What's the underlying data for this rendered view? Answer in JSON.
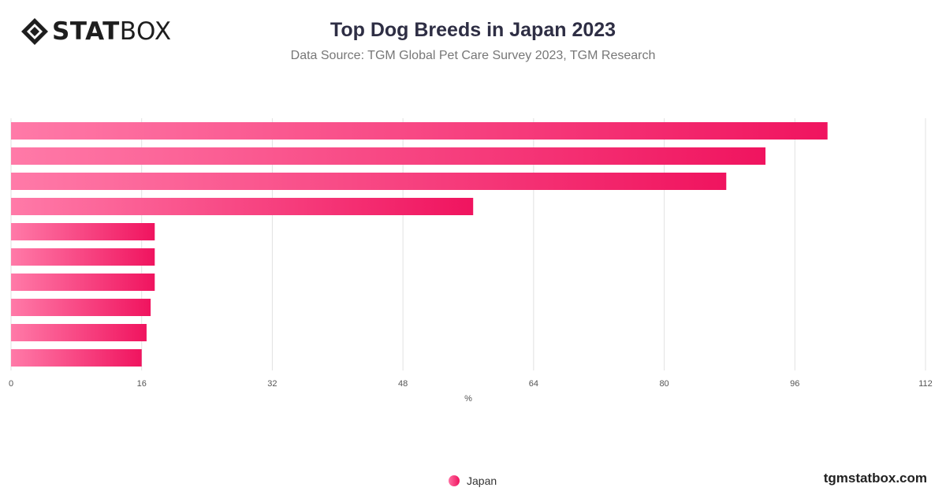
{
  "brand": {
    "logo_bold": "STAT",
    "logo_light": "BOX",
    "icon": "diamond-logo-icon"
  },
  "title": "Top Dog Breeds in Japan 2023",
  "subtitle": "Data Source: TGM Global Pet Care Survey 2023, TGM Research",
  "footer": "tgmstatbox.com",
  "legend": {
    "label": "Japan",
    "color": "#f0145f"
  },
  "colors": {
    "bar_start": "#ff7aa8",
    "bar_end": "#f0145f",
    "grid": "#e2e2e2"
  },
  "chart_data": {
    "type": "bar",
    "orientation": "horizontal",
    "series": [
      {
        "name": "Japan",
        "values": [
          100,
          92.4,
          87.6,
          56.6,
          17.6,
          17.6,
          17.6,
          17.1,
          16.6,
          16.0
        ]
      }
    ],
    "xlabel": "%",
    "xlim": [
      0,
      112
    ],
    "xticks": [
      0,
      16,
      32,
      48,
      64,
      80,
      96,
      112
    ],
    "grid": true,
    "legend_position": "bottom-center"
  }
}
